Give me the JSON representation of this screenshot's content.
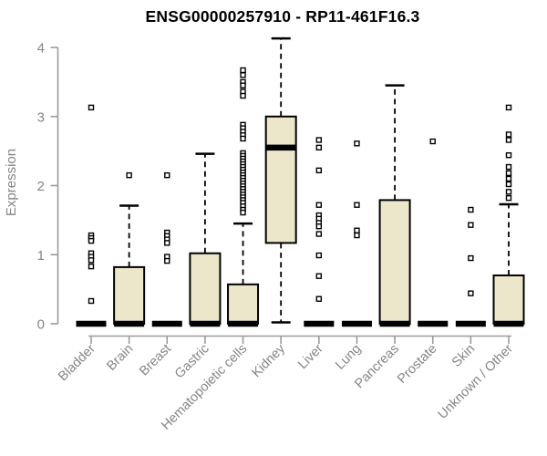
{
  "chart_data": {
    "type": "box",
    "title": "ENSG00000257910 - RP11-461F16.3",
    "xlabel": "",
    "ylabel": "Expression",
    "ylim": [
      0,
      4
    ],
    "yticks": [
      0,
      1,
      2,
      3,
      4
    ],
    "grid": false,
    "legend": "none",
    "categories": [
      "Bladder",
      "Brain",
      "Breast",
      "Gastric",
      "Hematopoietic cells",
      "Kidney",
      "Liver",
      "Lung",
      "Pancreas",
      "Prostate",
      "Skin",
      "Unknown / Other"
    ],
    "boxes": [
      {
        "category": "Bladder",
        "q1": 0,
        "median": 0,
        "q3": 0,
        "whisker_low": 0,
        "whisker_high": 0,
        "outliers": [
          3.13,
          1.28,
          1.24,
          1.2,
          1.02,
          0.97,
          0.92,
          0.83,
          0.33
        ]
      },
      {
        "category": "Brain",
        "q1": 0,
        "median": 0,
        "q3": 0.82,
        "whisker_low": 0,
        "whisker_high": 1.71,
        "outliers": [
          2.15
        ]
      },
      {
        "category": "Breast",
        "q1": 0,
        "median": 0,
        "q3": 0,
        "whisker_low": 0,
        "whisker_high": 0,
        "outliers": [
          2.15,
          1.32,
          1.27,
          1.22,
          1.17,
          0.97,
          0.91
        ]
      },
      {
        "category": "Gastric",
        "q1": 0,
        "median": 0,
        "q3": 1.02,
        "whisker_low": 0,
        "whisker_high": 2.46,
        "outliers": []
      },
      {
        "category": "Hematopoietic cells",
        "q1": 0,
        "median": 0,
        "q3": 0.57,
        "whisker_low": 0,
        "whisker_high": 1.45,
        "outliers": [
          3.67,
          3.6,
          3.5,
          3.45,
          3.36,
          3.3,
          2.88,
          2.83,
          2.78,
          2.73,
          2.68,
          2.47,
          2.43,
          2.39,
          2.35,
          2.31,
          2.27,
          2.23,
          2.19,
          2.15,
          2.11,
          2.07,
          2.03,
          1.99,
          1.95,
          1.91,
          1.87,
          1.83,
          1.79,
          1.75,
          1.7,
          1.65,
          1.61
        ]
      },
      {
        "category": "Kidney",
        "q1": 1.17,
        "median": 2.55,
        "q3": 3.0,
        "whisker_low": 0.02,
        "whisker_high": 4.13,
        "outliers": []
      },
      {
        "category": "Liver",
        "q1": 0,
        "median": 0,
        "q3": 0,
        "whisker_low": 0,
        "whisker_high": 0,
        "outliers": [
          2.66,
          2.55,
          2.22,
          1.72,
          1.57,
          1.52,
          1.46,
          1.41,
          1.3,
          0.99,
          0.69,
          0.36
        ]
      },
      {
        "category": "Lung",
        "q1": 0,
        "median": 0,
        "q3": 0,
        "whisker_low": 0,
        "whisker_high": 0,
        "outliers": [
          2.61,
          1.72,
          1.35,
          1.28
        ]
      },
      {
        "category": "Pancreas",
        "q1": 0,
        "median": 0,
        "q3": 1.79,
        "whisker_low": 0,
        "whisker_high": 3.45,
        "outliers": []
      },
      {
        "category": "Prostate",
        "q1": 0,
        "median": 0,
        "q3": 0,
        "whisker_low": 0,
        "whisker_high": 0,
        "outliers": [
          2.64
        ]
      },
      {
        "category": "Skin",
        "q1": 0,
        "median": 0,
        "q3": 0,
        "whisker_low": 0,
        "whisker_high": 0,
        "outliers": [
          1.65,
          1.43,
          0.95,
          0.44
        ]
      },
      {
        "category": "Unknown / Other",
        "q1": 0,
        "median": 0,
        "q3": 0.7,
        "whisker_low": 0,
        "whisker_high": 1.73,
        "outliers": [
          3.13,
          2.74,
          2.66,
          2.44,
          2.27,
          2.18,
          2.1,
          2.02,
          1.91,
          1.82
        ]
      }
    ],
    "style": {
      "box_fill": "#ECE7CB",
      "box_stroke": "#000000",
      "median_color": "#000000",
      "whisker_color": "#000000",
      "outlier_fill": "#FFFFFF",
      "outlier_stroke": "#000000",
      "axis_color": "#9B9B9B",
      "tick_label_color": "#858585",
      "title_color": "#000000",
      "background": "#FFFFFF"
    }
  }
}
